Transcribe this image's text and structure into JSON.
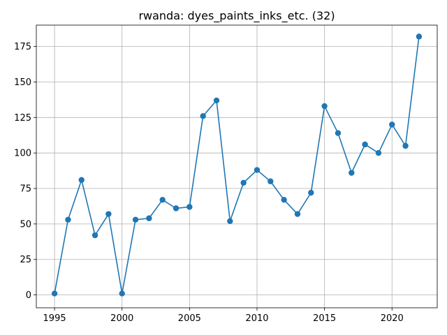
{
  "chart_data": {
    "type": "line",
    "title": "rwanda: dyes_paints_inks_etc. (32)",
    "xlabel": "",
    "ylabel": "",
    "xlim": [
      1993.65,
      2023.35
    ],
    "ylim": [
      -9.05,
      190.05
    ],
    "xticks": [
      1995,
      2000,
      2005,
      2010,
      2015,
      2020
    ],
    "yticks": [
      0,
      25,
      50,
      75,
      100,
      125,
      150,
      175
    ],
    "grid": true,
    "series": [
      {
        "color": "#1f77b4",
        "marker": "circle",
        "x": [
          1995,
          1996,
          1997,
          1998,
          1999,
          2000,
          2001,
          2002,
          2003,
          2004,
          2005,
          2006,
          2007,
          2008,
          2009,
          2010,
          2011,
          2012,
          2013,
          2014,
          2015,
          2016,
          2017,
          2018,
          2019,
          2020,
          2021,
          2022
        ],
        "y": [
          1,
          53,
          81,
          42,
          57,
          1,
          53,
          54,
          67,
          61,
          62,
          126,
          137,
          52,
          79,
          88,
          80,
          67,
          57,
          72,
          133,
          114,
          86,
          106,
          100,
          120,
          105,
          182
        ]
      }
    ]
  }
}
